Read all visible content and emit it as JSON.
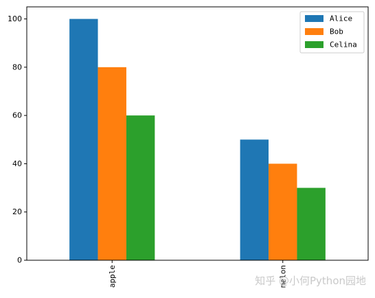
{
  "chart_data": {
    "type": "bar",
    "categories": [
      "apple",
      "melon"
    ],
    "series": [
      {
        "name": "Alice",
        "values": [
          100,
          50
        ],
        "color": "#1f77b4"
      },
      {
        "name": "Bob",
        "values": [
          80,
          40
        ],
        "color": "#ff7f0e"
      },
      {
        "name": "Celina",
        "values": [
          60,
          30
        ],
        "color": "#2ca02c"
      }
    ],
    "ylim": [
      0,
      105
    ],
    "yticks": [
      0,
      20,
      40,
      60,
      80,
      100
    ],
    "legend_position": "top-right",
    "grid": false,
    "title": "",
    "xlabel": "",
    "ylabel": ""
  },
  "watermark": "知乎 @小何Python园地"
}
